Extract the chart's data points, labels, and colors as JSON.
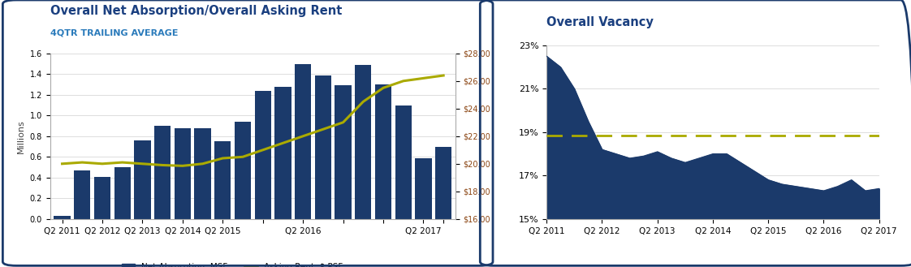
{
  "chart1": {
    "title": "Overall Net Absorption/Overall Asking Rent",
    "subtitle": "4QTR TRAILING AVERAGE",
    "ylabel_left": "Millions",
    "bar_values": [
      0.03,
      0.47,
      0.41,
      0.5,
      0.76,
      0.9,
      0.88,
      0.88,
      0.75,
      0.94,
      1.24,
      1.28,
      1.5,
      1.39,
      1.29,
      1.49,
      1.3,
      1.1,
      0.59,
      0.7
    ],
    "rent_values": [
      20.0,
      20.1,
      20.0,
      20.1,
      20.0,
      19.9,
      19.85,
      20.0,
      20.4,
      20.5,
      21.0,
      21.5,
      22.0,
      22.5,
      23.0,
      24.5,
      25.5,
      26.0,
      26.2,
      26.4
    ],
    "xtick_positions": [
      0,
      2,
      4,
      6,
      8,
      10,
      12,
      14,
      16,
      18,
      19
    ],
    "xtick_labels": [
      "Q2 2011",
      "Q2 2012",
      "Q2 2013",
      "Q2 2014",
      "Q2 2015",
      "",
      "Q2 2016",
      "",
      "",
      "Q2 2017",
      ""
    ],
    "bar_color": "#1B3A6B",
    "line_color": "#AAAA00",
    "ylim_left": [
      0,
      1.6
    ],
    "ylim_right": [
      16,
      28
    ],
    "yticks_left": [
      0.0,
      0.2,
      0.4,
      0.6,
      0.8,
      1.0,
      1.2,
      1.4,
      1.6
    ],
    "yticks_right": [
      16,
      18,
      20,
      22,
      24,
      26,
      28
    ],
    "legend_bar": "Net Absorption, MSF",
    "legend_line": "Asking Rent, $ PSF",
    "title_color": "#1B4080",
    "subtitle_color": "#2B7BBB",
    "frame_color": "#1B3A6B"
  },
  "chart2": {
    "title": "Overall Vacancy",
    "vacancy_x": [
      0,
      1,
      2,
      3,
      4,
      5,
      6,
      7,
      8,
      9,
      10,
      11,
      12,
      13,
      14,
      15,
      16,
      17,
      18,
      19,
      20,
      21,
      22,
      23,
      24
    ],
    "vacancy_values": [
      22.5,
      22.0,
      21.0,
      19.5,
      18.2,
      18.0,
      17.8,
      17.9,
      18.1,
      17.8,
      17.6,
      17.8,
      18.0,
      18.0,
      17.6,
      17.2,
      16.8,
      16.6,
      16.5,
      16.4,
      16.3,
      16.5,
      16.8,
      16.3,
      16.4
    ],
    "dashed_line_value": 18.85,
    "fill_color": "#1B3A6B",
    "line_color": "#AAAA00",
    "ylim": [
      15,
      23
    ],
    "yticks": [
      15,
      17,
      19,
      21,
      23
    ],
    "xtick_positions": [
      0,
      4,
      8,
      12,
      16,
      20,
      24
    ],
    "xtick_labels": [
      "Q2 2011",
      "Q2 2012",
      "Q2 2013",
      "Q2 2014",
      "Q2 2015",
      "Q2 2016",
      "Q2 2017"
    ],
    "title_color": "#1B4080",
    "frame_color": "#1B3A6B"
  }
}
